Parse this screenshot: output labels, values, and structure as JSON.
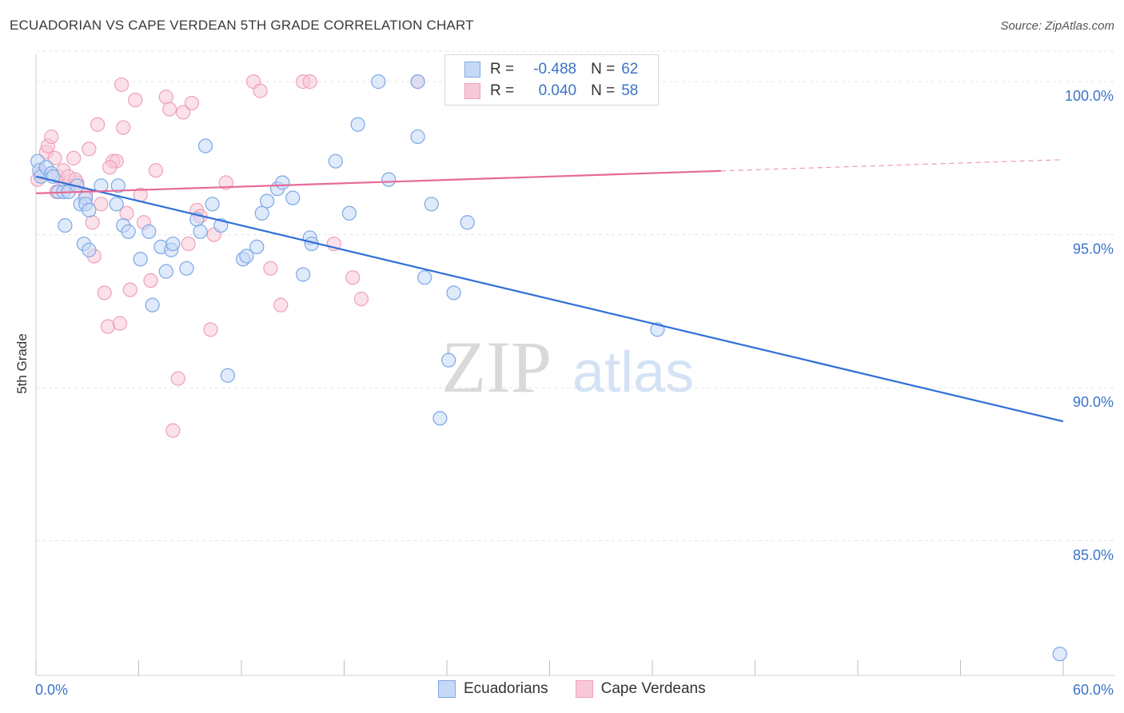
{
  "header": {
    "title": "ECUADORIAN VS CAPE VERDEAN 5TH GRADE CORRELATION CHART",
    "source": "Source: ZipAtlas.com"
  },
  "watermark": {
    "zip": "ZIP",
    "atlas": "atlas"
  },
  "legend": {
    "rows": [
      {
        "r_label": "R =",
        "r_value": "-0.488",
        "n_label": "N =",
        "n_value": "62",
        "color": "#8fb6ef"
      },
      {
        "r_label": "R =",
        "r_value": "0.040",
        "n_label": "N =",
        "n_value": "58",
        "color": "#f4a9c1"
      }
    ]
  },
  "bottom_legend": {
    "series_a": "Ecuadorians",
    "series_b": "Cape Verdeans"
  },
  "colors": {
    "blue_fill": "#c5d9f6",
    "blue_stroke": "#7da7e6",
    "blue_line": "#2f6fd6",
    "pink_fill": "#f8c8d7",
    "pink_stroke": "#eea0bb",
    "pink_line": "#e66a98",
    "grid": "#e3e3e3",
    "axis_text": "#3b73c8"
  },
  "chart_data": {
    "type": "scatter",
    "title": "ECUADORIAN VS CAPE VERDEAN 5TH GRADE CORRELATION CHART",
    "xlabel": "",
    "ylabel": "5th Grade",
    "xlim": [
      0,
      60
    ],
    "ylim": [
      80.6,
      101.1
    ],
    "x_tick_labels": [
      "0.0%",
      "60.0%"
    ],
    "y_ticks": [
      85,
      90,
      95,
      100
    ],
    "y_tick_labels": [
      "85.0%",
      "90.0%",
      "95.0%",
      "100.0%"
    ],
    "grid": true,
    "legend_position": "top-center",
    "series": [
      {
        "name": "Ecuadorians",
        "R": -0.488,
        "N": 62,
        "trend": {
          "x": [
            0,
            60
          ],
          "y": [
            96.9,
            88.9
          ],
          "dashed_from": null
        },
        "points": [
          [
            0.1,
            97.4
          ],
          [
            0.2,
            97.1
          ],
          [
            0.3,
            96.9
          ],
          [
            0.6,
            97.2
          ],
          [
            0.9,
            97.0
          ],
          [
            1.0,
            96.9
          ],
          [
            1.3,
            96.4
          ],
          [
            1.6,
            96.4
          ],
          [
            1.9,
            96.4
          ],
          [
            2.4,
            96.6
          ],
          [
            2.6,
            96.0
          ],
          [
            2.9,
            96.2
          ],
          [
            2.9,
            96.0
          ],
          [
            3.1,
            95.8
          ],
          [
            3.8,
            96.6
          ],
          [
            4.8,
            96.6
          ],
          [
            4.7,
            96.0
          ],
          [
            5.1,
            95.3
          ],
          [
            5.4,
            95.1
          ],
          [
            6.1,
            94.2
          ],
          [
            6.6,
            95.1
          ],
          [
            6.8,
            92.7
          ],
          [
            7.3,
            94.6
          ],
          [
            7.6,
            93.8
          ],
          [
            7.9,
            94.5
          ],
          [
            8.0,
            94.7
          ],
          [
            8.8,
            93.9
          ],
          [
            9.4,
            95.5
          ],
          [
            9.6,
            95.1
          ],
          [
            9.9,
            97.9
          ],
          [
            10.3,
            96.0
          ],
          [
            10.8,
            95.3
          ],
          [
            11.2,
            90.4
          ],
          [
            12.1,
            94.2
          ],
          [
            12.3,
            94.3
          ],
          [
            12.9,
            94.6
          ],
          [
            13.2,
            95.7
          ],
          [
            13.5,
            96.1
          ],
          [
            14.1,
            96.5
          ],
          [
            14.4,
            96.7
          ],
          [
            15.0,
            96.2
          ],
          [
            15.6,
            93.7
          ],
          [
            16.0,
            94.9
          ],
          [
            16.1,
            94.7
          ],
          [
            17.5,
            97.4
          ],
          [
            18.3,
            95.7
          ],
          [
            18.8,
            98.6
          ],
          [
            20.0,
            100.0
          ],
          [
            20.6,
            96.8
          ],
          [
            22.3,
            98.2
          ],
          [
            22.3,
            100.0
          ],
          [
            22.7,
            93.6
          ],
          [
            23.1,
            96.0
          ],
          [
            23.6,
            89.0
          ],
          [
            24.1,
            90.9
          ],
          [
            24.4,
            93.1
          ],
          [
            25.2,
            95.4
          ],
          [
            36.3,
            91.9
          ],
          [
            59.8,
            81.3
          ],
          [
            1.7,
            95.3
          ],
          [
            2.8,
            94.7
          ],
          [
            3.1,
            94.5
          ]
        ]
      },
      {
        "name": "Cape Verdeans",
        "R": 0.04,
        "N": 58,
        "trend": {
          "x": [
            0,
            60
          ],
          "y": [
            96.35,
            97.45
          ],
          "dashed_from": 40
        },
        "points": [
          [
            0.1,
            96.8
          ],
          [
            0.3,
            97.0
          ],
          [
            0.6,
            97.7
          ],
          [
            0.7,
            97.9
          ],
          [
            0.9,
            98.2
          ],
          [
            1.1,
            97.5
          ],
          [
            1.2,
            96.4
          ],
          [
            1.3,
            96.9
          ],
          [
            1.6,
            97.1
          ],
          [
            1.7,
            96.6
          ],
          [
            1.9,
            96.9
          ],
          [
            2.2,
            97.5
          ],
          [
            2.4,
            96.7
          ],
          [
            2.9,
            96.3
          ],
          [
            3.1,
            97.8
          ],
          [
            3.3,
            95.4
          ],
          [
            3.4,
            94.3
          ],
          [
            3.6,
            98.6
          ],
          [
            3.8,
            96.0
          ],
          [
            4.0,
            93.1
          ],
          [
            4.2,
            92.0
          ],
          [
            4.5,
            97.4
          ],
          [
            4.7,
            97.4
          ],
          [
            4.9,
            92.1
          ],
          [
            5.0,
            99.9
          ],
          [
            5.1,
            98.5
          ],
          [
            5.3,
            95.7
          ],
          [
            5.5,
            93.2
          ],
          [
            5.8,
            99.4
          ],
          [
            6.1,
            96.3
          ],
          [
            6.3,
            95.4
          ],
          [
            6.7,
            93.5
          ],
          [
            7.0,
            97.1
          ],
          [
            7.6,
            99.5
          ],
          [
            7.8,
            99.1
          ],
          [
            8.0,
            88.6
          ],
          [
            8.3,
            90.3
          ],
          [
            8.6,
            99.0
          ],
          [
            8.9,
            94.7
          ],
          [
            9.1,
            99.3
          ],
          [
            9.4,
            95.8
          ],
          [
            9.6,
            95.6
          ],
          [
            10.2,
            91.9
          ],
          [
            10.4,
            95.0
          ],
          [
            11.1,
            96.7
          ],
          [
            12.7,
            100.0
          ],
          [
            13.1,
            99.7
          ],
          [
            13.7,
            93.9
          ],
          [
            14.3,
            92.7
          ],
          [
            15.6,
            100.0
          ],
          [
            16.0,
            100.0
          ],
          [
            17.4,
            94.7
          ],
          [
            18.5,
            93.6
          ],
          [
            19.0,
            92.9
          ],
          [
            22.3,
            100.0
          ],
          [
            26.0,
            100.0
          ],
          [
            2.3,
            96.8
          ],
          [
            4.3,
            97.2
          ]
        ]
      }
    ]
  }
}
